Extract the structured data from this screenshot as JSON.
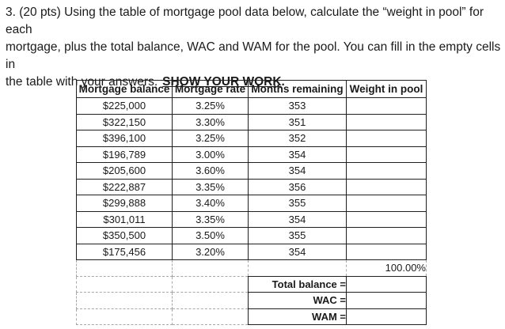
{
  "problem": {
    "lines": [
      "3. (20 pts) Using the table of mortgage pool data below, calculate the “weight in pool” for each",
      "mortgage, plus the total balance, WAC and WAM for the pool.  You can fill in the empty cells in",
      "the table with your answers."
    ],
    "emphasis": "SHOW YOUR WORK",
    "suffix": "."
  },
  "table": {
    "headers": [
      "Mortgage balance",
      "Mortgage rate",
      "Months remaining",
      "Weight in pool"
    ],
    "rows": [
      {
        "balance": "$225,000",
        "rate": "3.25%",
        "months": "353",
        "weight": ""
      },
      {
        "balance": "$322,150",
        "rate": "3.30%",
        "months": "351",
        "weight": ""
      },
      {
        "balance": "$396,100",
        "rate": "3.25%",
        "months": "352",
        "weight": ""
      },
      {
        "balance": "$196,789",
        "rate": "3.00%",
        "months": "354",
        "weight": ""
      },
      {
        "balance": "$205,600",
        "rate": "3.60%",
        "months": "354",
        "weight": ""
      },
      {
        "balance": "$222,887",
        "rate": "3.35%",
        "months": "356",
        "weight": ""
      },
      {
        "balance": "$299,888",
        "rate": "3.40%",
        "months": "355",
        "weight": ""
      },
      {
        "balance": "$301,011",
        "rate": "3.35%",
        "months": "354",
        "weight": ""
      },
      {
        "balance": "$350,500",
        "rate": "3.50%",
        "months": "355",
        "weight": ""
      },
      {
        "balance": "$175,456",
        "rate": "3.20%",
        "months": "354",
        "weight": ""
      }
    ],
    "total_weight": "100.00%",
    "summary": [
      {
        "label": "Total balance =",
        "value": ""
      },
      {
        "label": "WAC =",
        "value": ""
      },
      {
        "label": "WAM =",
        "value": ""
      }
    ],
    "colors": {
      "solid_border": "#1f1f1f",
      "dashed_border": "#a8a8a8",
      "text": "#1a1a1a"
    }
  }
}
